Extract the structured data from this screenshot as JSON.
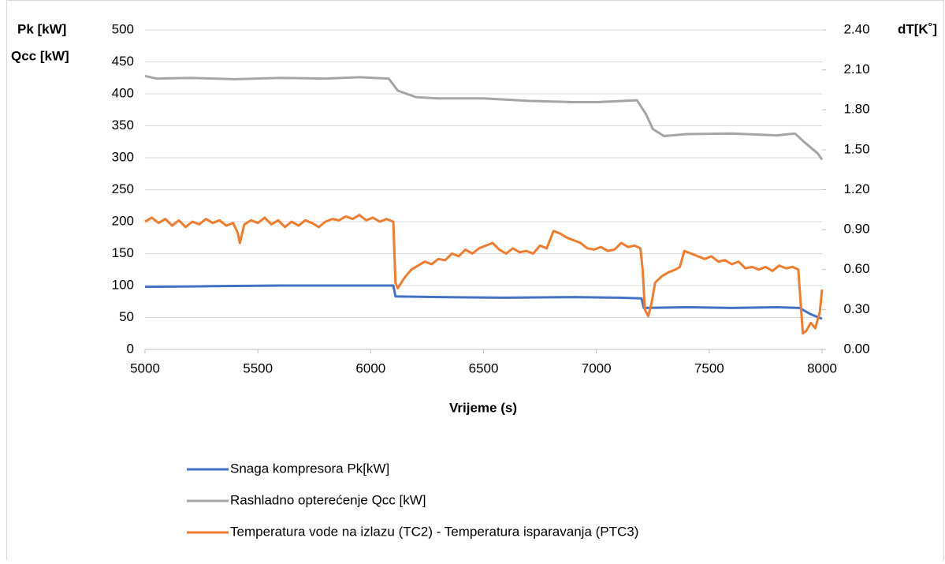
{
  "chart_data": {
    "type": "line",
    "y_label_lines": [
      "Pk [kW]",
      "Qcc [kW]"
    ],
    "y2_label": "dT[K˚]",
    "x_label": "Vrijeme (s)",
    "xlim": [
      5000,
      8000
    ],
    "xticks": [
      5000,
      5500,
      6000,
      6500,
      7000,
      7500,
      8000
    ],
    "ylim": [
      0,
      500
    ],
    "yticks": [
      0,
      50,
      100,
      150,
      200,
      250,
      300,
      350,
      400,
      450,
      500
    ],
    "y2lim": [
      0,
      2.4
    ],
    "y2ticks": [
      {
        "value": 0,
        "label": "0.00"
      },
      {
        "value": 0.3,
        "label": "0.30"
      },
      {
        "value": 0.6,
        "label": "0.60"
      },
      {
        "value": 0.9,
        "label": "0.90"
      },
      {
        "value": 1.2,
        "label": "1.20"
      },
      {
        "value": 1.5,
        "label": "1.50"
      },
      {
        "value": 1.8,
        "label": "1.80"
      },
      {
        "value": 2.1,
        "label": "2.10"
      },
      {
        "value": 2.4,
        "label": "2.40"
      }
    ],
    "grid": true,
    "series": [
      {
        "name": "Snaga kompresora Pk[kW]",
        "color": "#4472c4",
        "x": [
          5000,
          5300,
          5600,
          5900,
          6100,
          6110,
          6300,
          6600,
          6900,
          7100,
          7200,
          7210,
          7400,
          7600,
          7800,
          7900,
          7950,
          8000
        ],
        "values": [
          98,
          99,
          100,
          100,
          100,
          83,
          82,
          81,
          82,
          81,
          80,
          65,
          66,
          65,
          66,
          65,
          55,
          48
        ]
      },
      {
        "name": "Rashladno opterećenje Qcc [kW]",
        "color": "#a5a5a5",
        "x": [
          5000,
          5050,
          5200,
          5400,
          5600,
          5800,
          5950,
          6080,
          6120,
          6200,
          6300,
          6500,
          6700,
          6900,
          7000,
          7180,
          7220,
          7250,
          7300,
          7400,
          7600,
          7800,
          7880,
          7920,
          7980,
          8000
        ],
        "values": [
          428,
          424,
          425,
          423,
          425,
          424,
          426,
          424,
          405,
          395,
          393,
          393,
          389,
          387,
          387,
          390,
          368,
          345,
          334,
          337,
          338,
          335,
          338,
          325,
          307,
          297
        ]
      },
      {
        "name": "Temperatura vode na izlazu (TC2) - Temperatura isparavanja (PTC3)",
        "color": "#ed7d31",
        "axis": "y2",
        "x": [
          5000,
          5030,
          5060,
          5090,
          5120,
          5150,
          5180,
          5210,
          5240,
          5270,
          5300,
          5330,
          5360,
          5390,
          5410,
          5420,
          5440,
          5470,
          5500,
          5530,
          5560,
          5590,
          5620,
          5650,
          5680,
          5710,
          5740,
          5770,
          5800,
          5830,
          5860,
          5890,
          5920,
          5950,
          5980,
          6010,
          6040,
          6070,
          6100,
          6110,
          6120,
          6150,
          6180,
          6210,
          6240,
          6270,
          6300,
          6330,
          6360,
          6390,
          6420,
          6450,
          6480,
          6510,
          6540,
          6570,
          6600,
          6630,
          6660,
          6690,
          6720,
          6750,
          6780,
          6810,
          6840,
          6870,
          6900,
          6930,
          6960,
          6990,
          7020,
          7050,
          7080,
          7110,
          7140,
          7170,
          7195,
          7205,
          7215,
          7230,
          7245,
          7260,
          7290,
          7320,
          7350,
          7370,
          7390,
          7420,
          7450,
          7480,
          7510,
          7540,
          7570,
          7600,
          7630,
          7660,
          7690,
          7720,
          7750,
          7780,
          7810,
          7840,
          7870,
          7895,
          7905,
          7915,
          7930,
          7950,
          7970,
          7990,
          8000
        ],
        "values": [
          0.96,
          0.99,
          0.95,
          0.98,
          0.93,
          0.97,
          0.92,
          0.96,
          0.94,
          0.98,
          0.95,
          0.97,
          0.93,
          0.95,
          0.88,
          0.8,
          0.94,
          0.97,
          0.95,
          0.99,
          0.94,
          0.97,
          0.92,
          0.96,
          0.93,
          0.97,
          0.95,
          0.92,
          0.96,
          0.98,
          0.97,
          1.0,
          0.98,
          1.01,
          0.97,
          0.99,
          0.96,
          0.98,
          0.96,
          0.5,
          0.46,
          0.54,
          0.6,
          0.63,
          0.66,
          0.64,
          0.68,
          0.67,
          0.72,
          0.7,
          0.75,
          0.72,
          0.76,
          0.78,
          0.8,
          0.75,
          0.72,
          0.76,
          0.73,
          0.74,
          0.72,
          0.78,
          0.76,
          0.89,
          0.87,
          0.84,
          0.82,
          0.8,
          0.76,
          0.75,
          0.77,
          0.74,
          0.75,
          0.8,
          0.77,
          0.78,
          0.76,
          0.6,
          0.3,
          0.25,
          0.35,
          0.5,
          0.55,
          0.58,
          0.6,
          0.62,
          0.74,
          0.72,
          0.7,
          0.68,
          0.7,
          0.66,
          0.67,
          0.64,
          0.66,
          0.61,
          0.62,
          0.6,
          0.62,
          0.59,
          0.63,
          0.61,
          0.62,
          0.6,
          0.35,
          0.12,
          0.14,
          0.2,
          0.16,
          0.28,
          0.45
        ]
      }
    ]
  }
}
